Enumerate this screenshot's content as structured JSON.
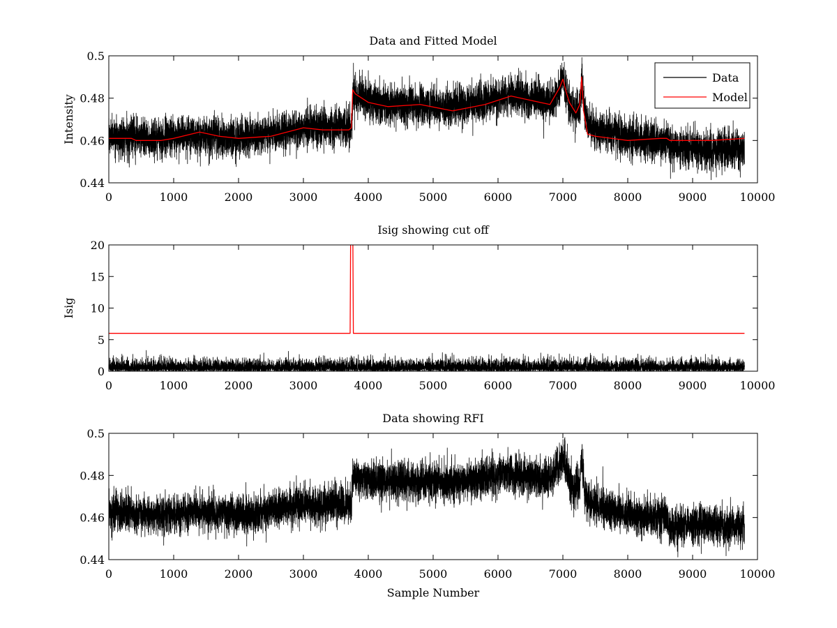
{
  "chart_data": [
    {
      "type": "line",
      "title": "Data and Fitted Model",
      "xlabel": "",
      "ylabel": "Intensity",
      "xlim": [
        0,
        10000
      ],
      "ylim": [
        0.44,
        0.5
      ],
      "xticks": [
        0,
        1000,
        2000,
        3000,
        4000,
        5000,
        6000,
        7000,
        8000,
        9000,
        10000
      ],
      "yticks": [
        0.44,
        0.46,
        0.48,
        0.5
      ],
      "grid": false,
      "legend": "top-right",
      "series": [
        {
          "name": "Data",
          "color": "#000000",
          "kind": "noisy",
          "noise": 0.0045,
          "n": 9800,
          "x_max": 9800,
          "baseline": [
            [
              0,
              0.462
            ],
            [
              700,
              0.461
            ],
            [
              1400,
              0.463
            ],
            [
              2000,
              0.461
            ],
            [
              3000,
              0.466
            ],
            [
              3740,
              0.466
            ],
            [
              3760,
              0.482
            ],
            [
              4200,
              0.477
            ],
            [
              5300,
              0.476
            ],
            [
              6200,
              0.481
            ],
            [
              6800,
              0.478
            ],
            [
              6950,
              0.485
            ],
            [
              7000,
              0.489
            ],
            [
              7100,
              0.478
            ],
            [
              7180,
              0.473
            ],
            [
              7260,
              0.475
            ],
            [
              7290,
              0.489
            ],
            [
              7340,
              0.471
            ],
            [
              7450,
              0.466
            ],
            [
              8000,
              0.461
            ],
            [
              8600,
              0.46
            ],
            [
              8650,
              0.456
            ],
            [
              9300,
              0.456
            ],
            [
              9800,
              0.456
            ]
          ]
        },
        {
          "name": "Model",
          "color": "#ff0000",
          "kind": "smooth",
          "points": [
            [
              0,
              0.461
            ],
            [
              350,
              0.461
            ],
            [
              420,
              0.46
            ],
            [
              800,
              0.46
            ],
            [
              1000,
              0.461
            ],
            [
              1400,
              0.464
            ],
            [
              1700,
              0.462
            ],
            [
              2000,
              0.461
            ],
            [
              2500,
              0.462
            ],
            [
              3000,
              0.466
            ],
            [
              3300,
              0.465
            ],
            [
              3700,
              0.465
            ],
            [
              3740,
              0.466
            ],
            [
              3760,
              0.484
            ],
            [
              3800,
              0.482
            ],
            [
              4000,
              0.478
            ],
            [
              4300,
              0.476
            ],
            [
              4800,
              0.477
            ],
            [
              5300,
              0.474
            ],
            [
              5800,
              0.477
            ],
            [
              6200,
              0.481
            ],
            [
              6800,
              0.477
            ],
            [
              6950,
              0.485
            ],
            [
              7000,
              0.489
            ],
            [
              7050,
              0.483
            ],
            [
              7100,
              0.478
            ],
            [
              7200,
              0.473
            ],
            [
              7260,
              0.477
            ],
            [
              7290,
              0.49
            ],
            [
              7320,
              0.474
            ],
            [
              7380,
              0.463
            ],
            [
              7500,
              0.462
            ],
            [
              8000,
              0.46
            ],
            [
              8500,
              0.461
            ],
            [
              8600,
              0.461
            ],
            [
              8650,
              0.46
            ],
            [
              9300,
              0.46
            ],
            [
              9800,
              0.461
            ]
          ]
        }
      ]
    },
    {
      "type": "line",
      "title": "Isig showing cut off",
      "xlabel": "",
      "ylabel": "Isig",
      "xlim": [
        0,
        10000
      ],
      "ylim": [
        0,
        20
      ],
      "xticks": [
        0,
        1000,
        2000,
        3000,
        4000,
        5000,
        6000,
        7000,
        8000,
        9000,
        10000
      ],
      "yticks": [
        0,
        5,
        10,
        15,
        20
      ],
      "grid": false,
      "series": [
        {
          "color": "#000000",
          "kind": "spiky",
          "n": 9800,
          "x_max": 9800,
          "scale": 0.85
        },
        {
          "color": "#ff0000",
          "kind": "smooth",
          "points": [
            [
              0,
              6
            ],
            [
              3720,
              6
            ],
            [
              3730,
              25
            ],
            [
              3760,
              25
            ],
            [
              3770,
              6
            ],
            [
              9800,
              6
            ]
          ]
        }
      ]
    },
    {
      "type": "line",
      "title": "Data showing RFI",
      "xlabel": "Sample Number",
      "ylabel": "",
      "xlim": [
        0,
        10000
      ],
      "ylim": [
        0.44,
        0.5
      ],
      "xticks": [
        0,
        1000,
        2000,
        3000,
        4000,
        5000,
        6000,
        7000,
        8000,
        9000,
        10000
      ],
      "yticks": [
        0.44,
        0.46,
        0.48,
        0.5
      ],
      "grid": false,
      "series": [
        {
          "color": "#000000",
          "kind": "noisy",
          "noise": 0.0045,
          "n": 9800,
          "x_max": 9800,
          "baseline": [
            [
              0,
              0.462
            ],
            [
              700,
              0.461
            ],
            [
              1400,
              0.463
            ],
            [
              2000,
              0.461
            ],
            [
              3000,
              0.466
            ],
            [
              3740,
              0.466
            ],
            [
              3760,
              0.479
            ],
            [
              4200,
              0.477
            ],
            [
              5300,
              0.477
            ],
            [
              6200,
              0.481
            ],
            [
              6800,
              0.478
            ],
            [
              6950,
              0.485
            ],
            [
              7000,
              0.489
            ],
            [
              7100,
              0.478
            ],
            [
              7180,
              0.473
            ],
            [
              7260,
              0.475
            ],
            [
              7290,
              0.489
            ],
            [
              7340,
              0.471
            ],
            [
              7450,
              0.466
            ],
            [
              8000,
              0.461
            ],
            [
              8600,
              0.46
            ],
            [
              8650,
              0.456
            ],
            [
              9300,
              0.456
            ],
            [
              9800,
              0.456
            ]
          ]
        }
      ]
    }
  ]
}
